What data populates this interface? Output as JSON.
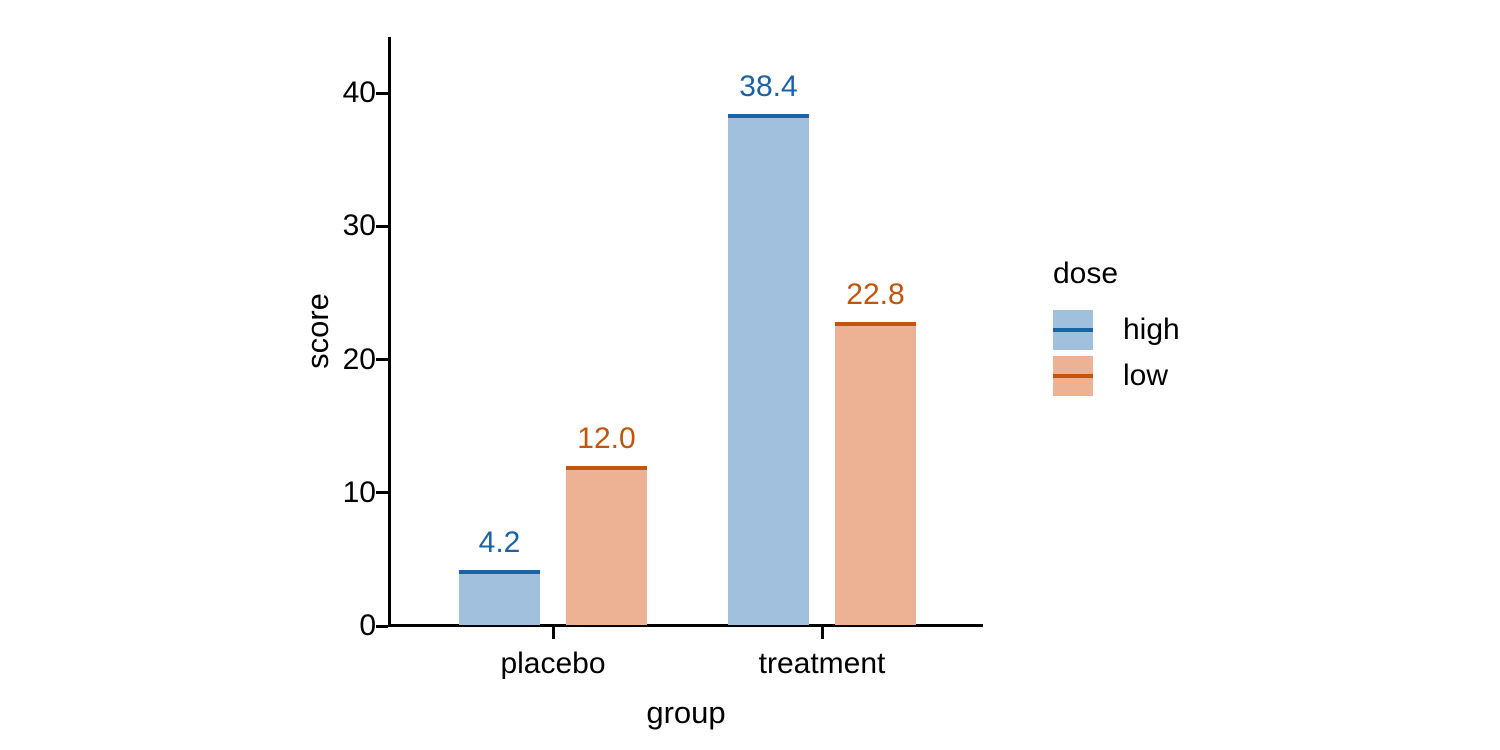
{
  "chart_data": {
    "type": "bar",
    "title": "",
    "xlabel": "group",
    "ylabel": "score",
    "categories": [
      "placebo",
      "treatment"
    ],
    "series": [
      {
        "name": "high",
        "values": [
          4.2,
          38.4
        ],
        "labels": [
          "4.2",
          "38.4"
        ],
        "fill": "#a0c0dd",
        "edge": "#1a63a8"
      },
      {
        "name": "low",
        "values": [
          12.0,
          22.8
        ],
        "labels": [
          "12.0",
          "22.8"
        ],
        "fill": "#ecb293",
        "edge": "#c4540a"
      }
    ],
    "legend_title": "dose",
    "legend_position": "right",
    "y_ticks": [
      0,
      10,
      20,
      30,
      40
    ],
    "ylim": [
      0,
      44.2
    ],
    "grid": false,
    "axis_color": "#000000",
    "background": "#ffffff"
  }
}
